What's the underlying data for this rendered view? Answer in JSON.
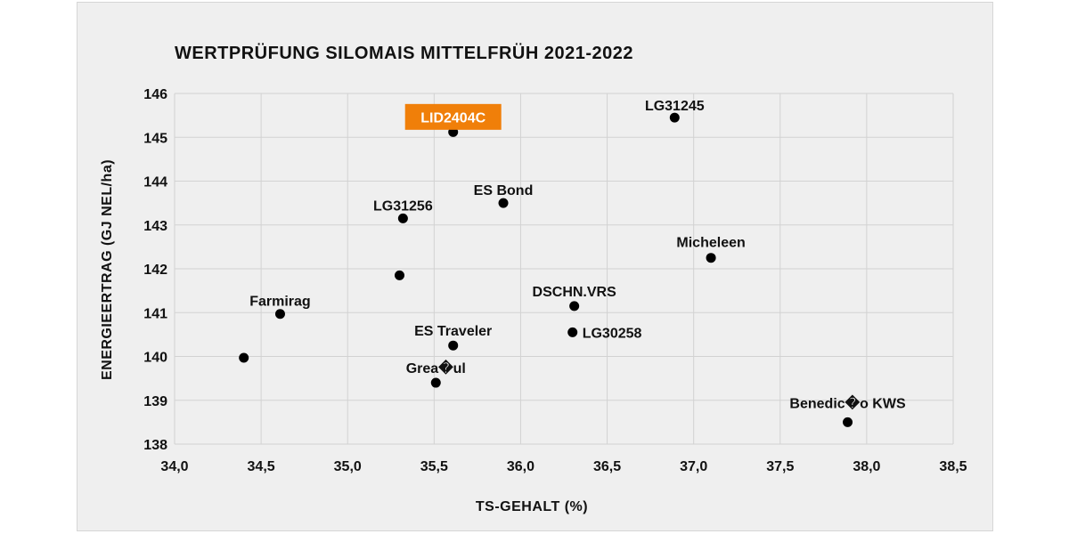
{
  "chart_data": {
    "type": "scatter",
    "title": "WERTPRÜFUNG SILOMAIS MITTELFRÜH 2021-2022",
    "xlabel": "TS-GEHALT (%)",
    "ylabel": "ENERGIEERTRAG (GJ NEL/ha)",
    "xlim": [
      34.0,
      38.5
    ],
    "ylim": [
      138,
      146
    ],
    "x_ticks": [
      "34,0",
      "34,5",
      "35,0",
      "35,5",
      "36,0",
      "36,5",
      "37,0",
      "37,5",
      "38,0",
      "38,5"
    ],
    "y_ticks": [
      "138",
      "139",
      "140",
      "141",
      "142",
      "143",
      "144",
      "145",
      "146"
    ],
    "grid": true,
    "highlight_color": "#f07f09",
    "marker_color": "#000000",
    "points": [
      {
        "label": "LID2404C",
        "x": 35.61,
        "y": 145.12,
        "highlight": true
      },
      {
        "label": "LG31245",
        "x": 36.89,
        "y": 145.45,
        "highlight": false
      },
      {
        "label": "ES Bond",
        "x": 35.9,
        "y": 143.5,
        "highlight": false
      },
      {
        "label": "LG31256",
        "x": 35.32,
        "y": 143.15,
        "highlight": false
      },
      {
        "label": "Micheleen",
        "x": 37.1,
        "y": 142.25,
        "highlight": false
      },
      {
        "label": "",
        "x": 35.3,
        "y": 141.85,
        "highlight": false
      },
      {
        "label": "DSCHN.VRS",
        "x": 36.31,
        "y": 141.15,
        "highlight": false
      },
      {
        "label": "Farmirag",
        "x": 34.61,
        "y": 140.97,
        "highlight": false
      },
      {
        "label": "LG30258",
        "x": 36.3,
        "y": 140.55,
        "highlight": false
      },
      {
        "label": "ES Traveler",
        "x": 35.61,
        "y": 140.25,
        "highlight": false
      },
      {
        "label": "",
        "x": 34.4,
        "y": 139.97,
        "highlight": false
      },
      {
        "label": "Grea�ul",
        "x": 35.51,
        "y": 139.4,
        "highlight": false
      },
      {
        "label": "Benedic�o KWS",
        "x": 37.89,
        "y": 138.5,
        "highlight": false
      }
    ]
  }
}
